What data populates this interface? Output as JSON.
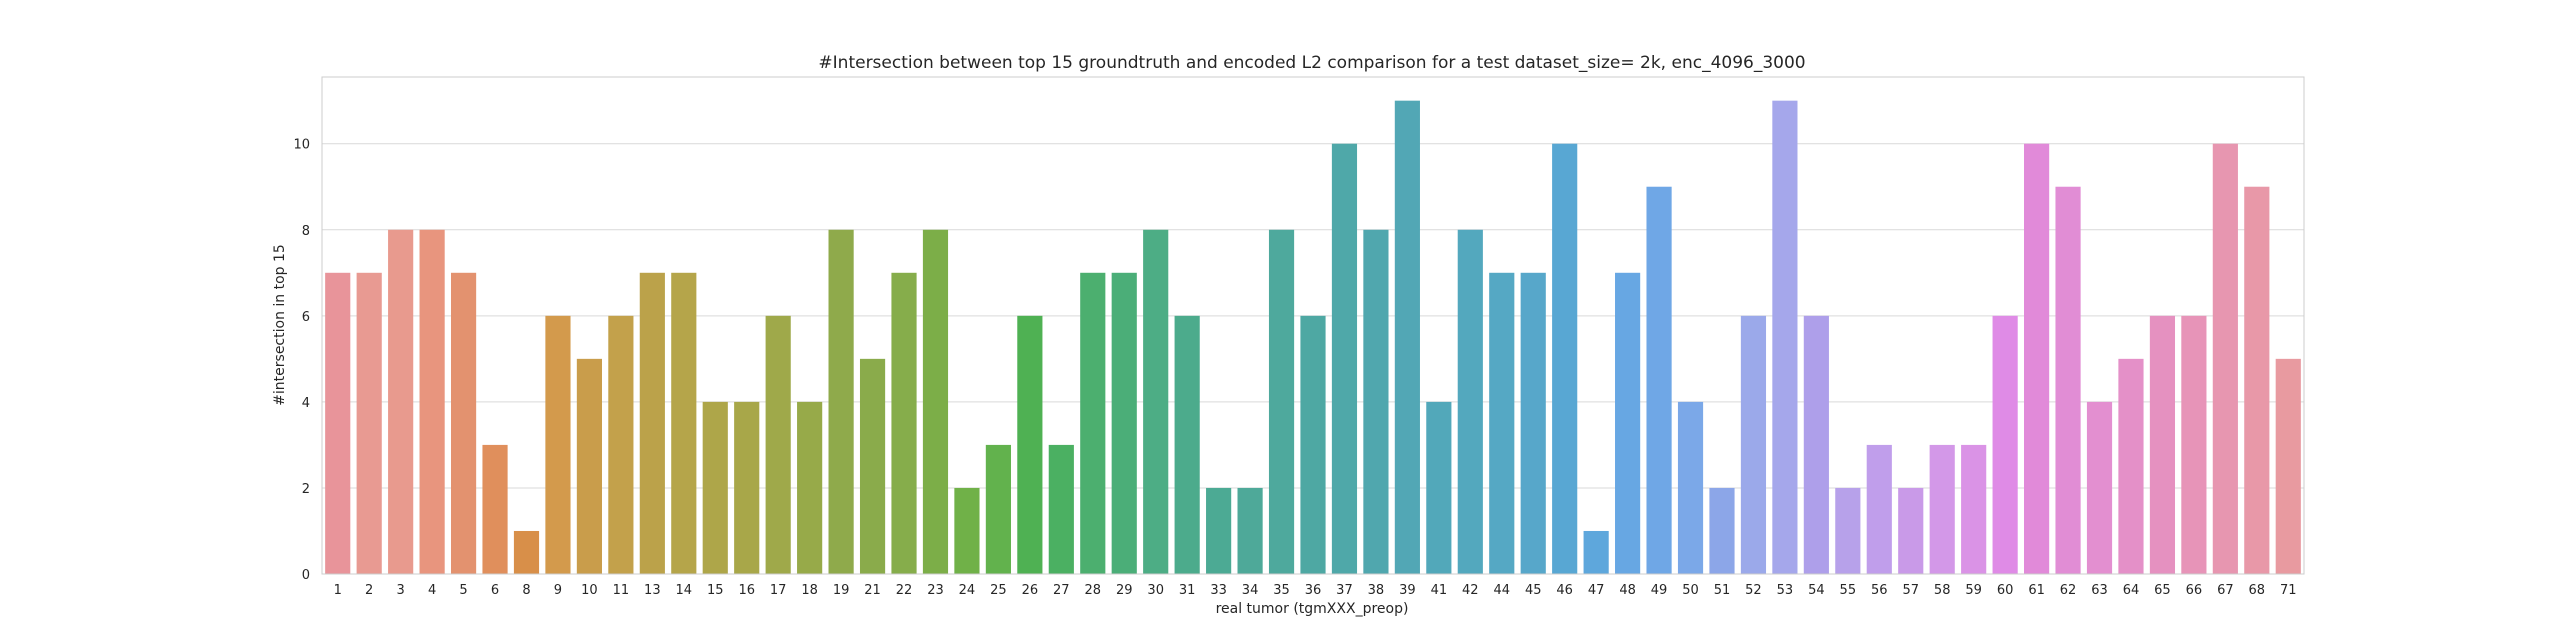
{
  "chart_data": {
    "type": "bar",
    "title": "#Intersection between top 15 groundtruth and encoded L2 comparison for a test dataset_size= 2k, enc_4096_3000",
    "xlabel": "real tumor (tgmXXX_preop)",
    "ylabel": "#intersection in top 15",
    "ylim": [
      0,
      11.55
    ],
    "yticks": [
      0,
      2,
      4,
      6,
      8,
      10
    ],
    "grid": true,
    "categories": [
      "1",
      "2",
      "3",
      "4",
      "5",
      "6",
      "8",
      "9",
      "10",
      "11",
      "13",
      "14",
      "15",
      "16",
      "17",
      "18",
      "19",
      "21",
      "22",
      "23",
      "24",
      "25",
      "26",
      "27",
      "28",
      "29",
      "30",
      "31",
      "33",
      "34",
      "35",
      "36",
      "37",
      "38",
      "39",
      "41",
      "42",
      "44",
      "45",
      "46",
      "47",
      "48",
      "49",
      "50",
      "51",
      "52",
      "53",
      "54",
      "55",
      "56",
      "57",
      "58",
      "59",
      "60",
      "61",
      "62",
      "63",
      "64",
      "65",
      "66",
      "67",
      "68",
      "71"
    ],
    "values": [
      7,
      7,
      8,
      8,
      7,
      3,
      1,
      6,
      5,
      6,
      7,
      7,
      4,
      4,
      6,
      4,
      8,
      5,
      7,
      8,
      2,
      3,
      6,
      3,
      7,
      7,
      8,
      6,
      2,
      2,
      8,
      6,
      10,
      8,
      11,
      4,
      8,
      7,
      7,
      10,
      1,
      7,
      9,
      4,
      2,
      6,
      11,
      6,
      2,
      3,
      2,
      3,
      3,
      6,
      10,
      9,
      4,
      5,
      6,
      6,
      10,
      9,
      5
    ],
    "colors": [
      "#e8949a",
      "#e89a92",
      "#e89a8e",
      "#e8957e",
      "#e3926f",
      "#e08f5c",
      "#d88f49",
      "#d39a4c",
      "#c99d4b",
      "#c3a14b",
      "#bba24a",
      "#b5a54a",
      "#aea649",
      "#a8a749",
      "#9fa94a",
      "#97aa49",
      "#8faa4b",
      "#8aab4b",
      "#86ad4b",
      "#7cae48",
      "#70b148",
      "#62b24d",
      "#4fb153",
      "#4bb062",
      "#4caf6f",
      "#4bae78",
      "#4dad85",
      "#4cab8c",
      "#4caa94",
      "#4ea999",
      "#4ea99d",
      "#4ea8a3",
      "#4fa8a9",
      "#50a7ae",
      "#52a7b5",
      "#52a8ba",
      "#53a8be",
      "#55a8c4",
      "#57a7ca",
      "#58a7d3",
      "#5ea7dc",
      "#67a7e3",
      "#6fa7e6",
      "#7ba8e8",
      "#8ca6e8",
      "#9ba9ea",
      "#a5a7eb",
      "#ae9fea",
      "#b7a1ea",
      "#c09eeb",
      "#c99ae8",
      "#d398e8",
      "#da93e6",
      "#df8be6",
      "#e18ad9",
      "#e18dd5",
      "#e38fd0",
      "#e490c8",
      "#e591c0",
      "#e794b8",
      "#e796b0",
      "#e898a8",
      "#e89aa0"
    ]
  }
}
